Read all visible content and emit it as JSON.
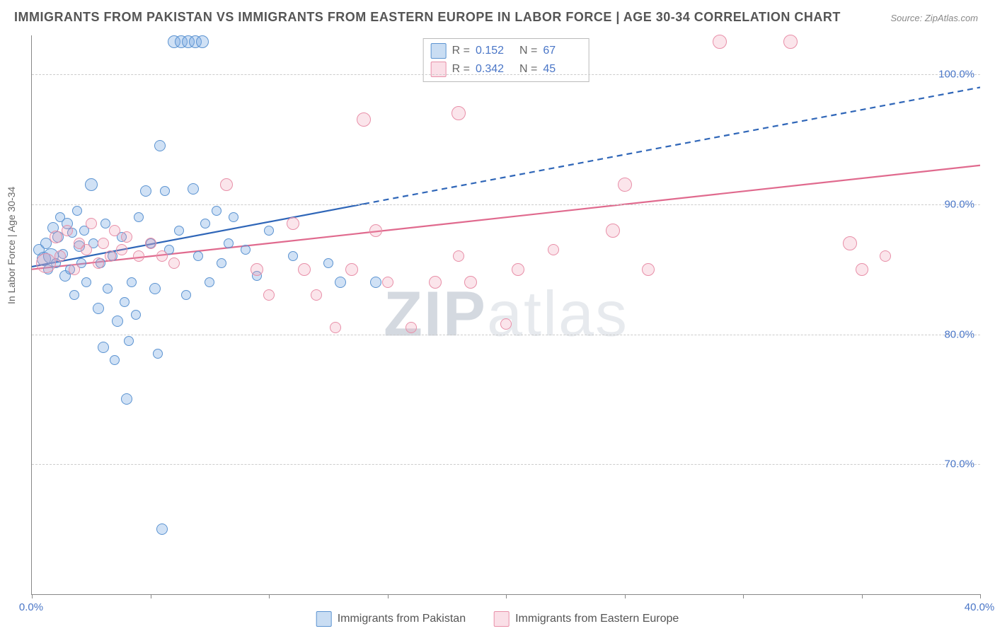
{
  "title": "IMMIGRANTS FROM PAKISTAN VS IMMIGRANTS FROM EASTERN EUROPE IN LABOR FORCE | AGE 30-34 CORRELATION CHART",
  "source": "Source: ZipAtlas.com",
  "ylabel": "In Labor Force | Age 30-34",
  "watermark_a": "ZIP",
  "watermark_b": "atlas",
  "chart": {
    "type": "scatter",
    "xlim": [
      0,
      40
    ],
    "ylim": [
      60,
      103
    ],
    "xticks": [
      0,
      5,
      10,
      15,
      20,
      25,
      30,
      35,
      40
    ],
    "xtick_labels": {
      "0": "0.0%",
      "40": "40.0%"
    },
    "yticks": [
      70,
      80,
      90,
      100
    ],
    "ytick_labels": [
      "70.0%",
      "80.0%",
      "90.0%",
      "100.0%"
    ],
    "grid_color": "#cccccc",
    "background_color": "#ffffff",
    "axis_color": "#888888",
    "series": [
      {
        "name": "Immigrants from Pakistan",
        "key": "pakistan",
        "color_fill": "rgba(120,170,225,0.35)",
        "color_stroke": "#5b93d1",
        "marker_size_min": 10,
        "marker_size_max": 24,
        "r_label": "R =",
        "r_value": "0.152",
        "n_label": "N =",
        "n_value": "67",
        "trend": {
          "x1": 0,
          "y1": 85.2,
          "x2": 40,
          "y2": 99.0,
          "solid_until_x": 14,
          "color": "#2f66b8",
          "width": 2.2
        },
        "points": [
          {
            "x": 0.3,
            "y": 86.5,
            "s": 14
          },
          {
            "x": 0.5,
            "y": 85.8,
            "s": 18
          },
          {
            "x": 0.6,
            "y": 87.0,
            "s": 14
          },
          {
            "x": 0.7,
            "y": 85.0,
            "s": 12
          },
          {
            "x": 0.8,
            "y": 86.0,
            "s": 20
          },
          {
            "x": 0.9,
            "y": 88.2,
            "s": 14
          },
          {
            "x": 1.0,
            "y": 85.5,
            "s": 12
          },
          {
            "x": 1.1,
            "y": 87.5,
            "s": 14
          },
          {
            "x": 1.2,
            "y": 89.0,
            "s": 12
          },
          {
            "x": 1.3,
            "y": 86.2,
            "s": 12
          },
          {
            "x": 1.4,
            "y": 84.5,
            "s": 14
          },
          {
            "x": 1.5,
            "y": 88.5,
            "s": 14
          },
          {
            "x": 1.6,
            "y": 85.0,
            "s": 12
          },
          {
            "x": 1.7,
            "y": 87.8,
            "s": 12
          },
          {
            "x": 1.8,
            "y": 83.0,
            "s": 12
          },
          {
            "x": 1.9,
            "y": 89.5,
            "s": 12
          },
          {
            "x": 2.0,
            "y": 86.8,
            "s": 14
          },
          {
            "x": 2.1,
            "y": 85.5,
            "s": 12
          },
          {
            "x": 2.2,
            "y": 88.0,
            "s": 12
          },
          {
            "x": 2.3,
            "y": 84.0,
            "s": 12
          },
          {
            "x": 2.5,
            "y": 91.5,
            "s": 16
          },
          {
            "x": 2.6,
            "y": 87.0,
            "s": 12
          },
          {
            "x": 2.8,
            "y": 82.0,
            "s": 14
          },
          {
            "x": 2.9,
            "y": 85.5,
            "s": 12
          },
          {
            "x": 3.0,
            "y": 79.0,
            "s": 14
          },
          {
            "x": 3.1,
            "y": 88.5,
            "s": 12
          },
          {
            "x": 3.2,
            "y": 83.5,
            "s": 12
          },
          {
            "x": 3.4,
            "y": 86.0,
            "s": 12
          },
          {
            "x": 3.5,
            "y": 78.0,
            "s": 12
          },
          {
            "x": 3.6,
            "y": 81.0,
            "s": 14
          },
          {
            "x": 3.8,
            "y": 87.5,
            "s": 12
          },
          {
            "x": 3.9,
            "y": 82.5,
            "s": 12
          },
          {
            "x": 4.0,
            "y": 75.0,
            "s": 14
          },
          {
            "x": 4.1,
            "y": 79.5,
            "s": 12
          },
          {
            "x": 4.2,
            "y": 84.0,
            "s": 12
          },
          {
            "x": 4.4,
            "y": 81.5,
            "s": 12
          },
          {
            "x": 4.5,
            "y": 89.0,
            "s": 12
          },
          {
            "x": 4.8,
            "y": 91.0,
            "s": 14
          },
          {
            "x": 5.0,
            "y": 87.0,
            "s": 12
          },
          {
            "x": 5.2,
            "y": 83.5,
            "s": 14
          },
          {
            "x": 5.3,
            "y": 78.5,
            "s": 12
          },
          {
            "x": 5.5,
            "y": 65.0,
            "s": 14
          },
          {
            "x": 5.6,
            "y": 91.0,
            "s": 12
          },
          {
            "x": 5.8,
            "y": 86.5,
            "s": 12
          },
          {
            "x": 6.0,
            "y": 102.5,
            "s": 16
          },
          {
            "x": 6.3,
            "y": 102.5,
            "s": 16
          },
          {
            "x": 6.6,
            "y": 102.5,
            "s": 16
          },
          {
            "x": 6.9,
            "y": 102.5,
            "s": 16
          },
          {
            "x": 7.2,
            "y": 102.5,
            "s": 16
          },
          {
            "x": 5.4,
            "y": 94.5,
            "s": 14
          },
          {
            "x": 6.2,
            "y": 88.0,
            "s": 12
          },
          {
            "x": 6.5,
            "y": 83.0,
            "s": 12
          },
          {
            "x": 6.8,
            "y": 91.2,
            "s": 14
          },
          {
            "x": 7.0,
            "y": 86.0,
            "s": 12
          },
          {
            "x": 7.3,
            "y": 88.5,
            "s": 12
          },
          {
            "x": 7.5,
            "y": 84.0,
            "s": 12
          },
          {
            "x": 7.8,
            "y": 89.5,
            "s": 12
          },
          {
            "x": 8.0,
            "y": 85.5,
            "s": 12
          },
          {
            "x": 8.3,
            "y": 87.0,
            "s": 12
          },
          {
            "x": 8.5,
            "y": 89.0,
            "s": 12
          },
          {
            "x": 9.0,
            "y": 86.5,
            "s": 12
          },
          {
            "x": 9.5,
            "y": 84.5,
            "s": 12
          },
          {
            "x": 10.0,
            "y": 88.0,
            "s": 12
          },
          {
            "x": 11.0,
            "y": 86.0,
            "s": 12
          },
          {
            "x": 12.5,
            "y": 85.5,
            "s": 12
          },
          {
            "x": 13.0,
            "y": 84.0,
            "s": 14
          },
          {
            "x": 14.5,
            "y": 84.0,
            "s": 14
          }
        ]
      },
      {
        "name": "Immigrants from Eastern Europe",
        "key": "eastern_europe",
        "color_fill": "rgba(240,150,175,0.25)",
        "color_stroke": "#e88fa8",
        "marker_size_min": 12,
        "marker_size_max": 26,
        "r_label": "R =",
        "r_value": "0.342",
        "n_label": "N =",
        "n_value": "45",
        "trend": {
          "x1": 0,
          "y1": 85.0,
          "x2": 40,
          "y2": 93.0,
          "solid_until_x": 40,
          "color": "#e06a8e",
          "width": 2.2
        },
        "points": [
          {
            "x": 0.6,
            "y": 85.5,
            "s": 26
          },
          {
            "x": 1.0,
            "y": 87.5,
            "s": 16
          },
          {
            "x": 1.2,
            "y": 86.0,
            "s": 14
          },
          {
            "x": 1.5,
            "y": 88.0,
            "s": 14
          },
          {
            "x": 1.8,
            "y": 85.0,
            "s": 14
          },
          {
            "x": 2.0,
            "y": 87.0,
            "s": 14
          },
          {
            "x": 2.3,
            "y": 86.5,
            "s": 14
          },
          {
            "x": 2.5,
            "y": 88.5,
            "s": 14
          },
          {
            "x": 2.8,
            "y": 85.5,
            "s": 14
          },
          {
            "x": 3.0,
            "y": 87.0,
            "s": 14
          },
          {
            "x": 3.3,
            "y": 86.0,
            "s": 14
          },
          {
            "x": 3.5,
            "y": 88.0,
            "s": 14
          },
          {
            "x": 3.8,
            "y": 86.5,
            "s": 14
          },
          {
            "x": 4.0,
            "y": 87.5,
            "s": 14
          },
          {
            "x": 4.5,
            "y": 86.0,
            "s": 14
          },
          {
            "x": 5.0,
            "y": 87.0,
            "s": 14
          },
          {
            "x": 5.5,
            "y": 86.0,
            "s": 14
          },
          {
            "x": 6.0,
            "y": 85.5,
            "s": 14
          },
          {
            "x": 8.2,
            "y": 91.5,
            "s": 16
          },
          {
            "x": 9.5,
            "y": 85.0,
            "s": 16
          },
          {
            "x": 10.0,
            "y": 83.0,
            "s": 14
          },
          {
            "x": 11.0,
            "y": 88.5,
            "s": 16
          },
          {
            "x": 11.5,
            "y": 85.0,
            "s": 16
          },
          {
            "x": 12.0,
            "y": 83.0,
            "s": 14
          },
          {
            "x": 12.8,
            "y": 80.5,
            "s": 14
          },
          {
            "x": 13.5,
            "y": 85.0,
            "s": 16
          },
          {
            "x": 14.0,
            "y": 96.5,
            "s": 18
          },
          {
            "x": 14.5,
            "y": 88.0,
            "s": 16
          },
          {
            "x": 15.0,
            "y": 84.0,
            "s": 14
          },
          {
            "x": 16.0,
            "y": 80.5,
            "s": 14
          },
          {
            "x": 17.0,
            "y": 84.0,
            "s": 16
          },
          {
            "x": 18.0,
            "y": 97.0,
            "s": 18
          },
          {
            "x": 18.5,
            "y": 84.0,
            "s": 16
          },
          {
            "x": 20.0,
            "y": 80.8,
            "s": 14
          },
          {
            "x": 20.5,
            "y": 85.0,
            "s": 16
          },
          {
            "x": 24.5,
            "y": 88.0,
            "s": 18
          },
          {
            "x": 25.0,
            "y": 91.5,
            "s": 18
          },
          {
            "x": 26.0,
            "y": 85.0,
            "s": 16
          },
          {
            "x": 29.0,
            "y": 102.5,
            "s": 18
          },
          {
            "x": 32.0,
            "y": 102.5,
            "s": 18
          },
          {
            "x": 34.5,
            "y": 87.0,
            "s": 18
          },
          {
            "x": 35.0,
            "y": 85.0,
            "s": 16
          },
          {
            "x": 36.0,
            "y": 86.0,
            "s": 14
          },
          {
            "x": 18.0,
            "y": 86.0,
            "s": 14
          },
          {
            "x": 22.0,
            "y": 86.5,
            "s": 14
          }
        ]
      }
    ]
  },
  "bottom_legend": [
    {
      "swatch": "blue",
      "label": "Immigrants from Pakistan"
    },
    {
      "swatch": "pink",
      "label": "Immigrants from Eastern Europe"
    }
  ]
}
